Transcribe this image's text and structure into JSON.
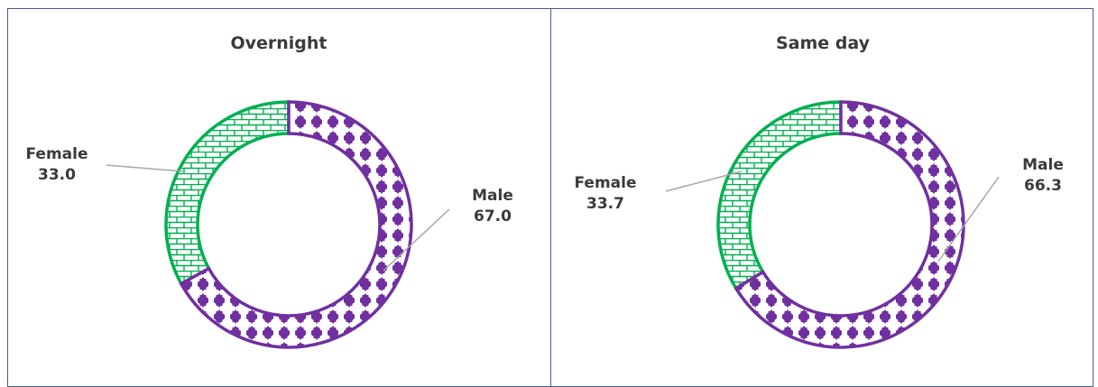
{
  "colors": {
    "male": "#7030a0",
    "female": "#00b050",
    "leader": "#a6a6a6",
    "border": "#4a5a8a"
  },
  "chart_data": [
    {
      "type": "pie",
      "title": "Overnight",
      "series": [
        {
          "name": "Female",
          "value": 33.0,
          "value_label": "33.0"
        },
        {
          "name": "Male",
          "value": 67.0,
          "value_label": "67.0"
        }
      ]
    },
    {
      "type": "pie",
      "title": "Same day",
      "series": [
        {
          "name": "Female",
          "value": 33.7,
          "value_label": "33.7"
        },
        {
          "name": "Male",
          "value": 66.3,
          "value_label": "66.3"
        }
      ]
    }
  ]
}
